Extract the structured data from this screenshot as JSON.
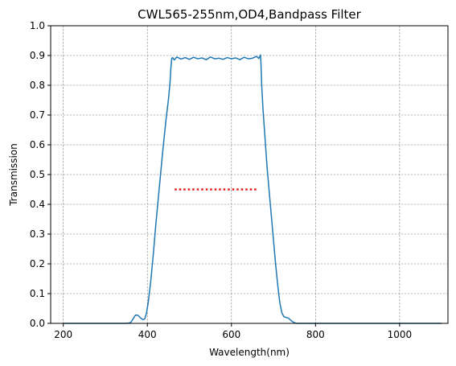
{
  "chart_data": {
    "type": "line",
    "title": "CWL565-255nm,OD4,Bandpass Filter",
    "xlabel": "Wavelength(nm)",
    "ylabel": "Transmission",
    "xlim": [
      170,
      1115
    ],
    "ylim": [
      0,
      1.0
    ],
    "xticks": [
      200,
      400,
      600,
      800,
      1000
    ],
    "yticks": [
      0.0,
      0.1,
      0.2,
      0.3,
      0.4,
      0.5,
      0.6,
      0.7,
      0.8,
      0.9,
      1.0
    ],
    "grid": true,
    "series": [
      {
        "color": "#1f77b4",
        "style": "solid",
        "x": [
          200,
          300,
          350,
          360,
          366,
          372,
          378,
          384,
          390,
          394,
          398,
          402,
          408,
          414,
          420,
          428,
          436,
          444,
          450,
          454,
          456,
          458,
          460,
          464,
          470,
          480,
          490,
          500,
          510,
          520,
          530,
          540,
          550,
          560,
          570,
          580,
          590,
          600,
          610,
          620,
          630,
          640,
          650,
          660,
          665,
          669,
          670,
          672,
          675,
          680,
          685,
          690,
          695,
          700,
          705,
          710,
          715,
          720,
          725,
          730,
          735,
          740,
          745,
          750,
          755,
          760,
          770,
          780,
          800,
          900,
          1000,
          1100
        ],
        "y": [
          0.0,
          0.0,
          0.0,
          0.002,
          0.015,
          0.028,
          0.027,
          0.018,
          0.012,
          0.016,
          0.035,
          0.07,
          0.14,
          0.23,
          0.33,
          0.45,
          0.57,
          0.68,
          0.75,
          0.81,
          0.86,
          0.89,
          0.893,
          0.885,
          0.895,
          0.888,
          0.893,
          0.887,
          0.894,
          0.889,
          0.892,
          0.886,
          0.895,
          0.889,
          0.891,
          0.887,
          0.893,
          0.889,
          0.892,
          0.886,
          0.894,
          0.889,
          0.891,
          0.897,
          0.89,
          0.902,
          0.88,
          0.8,
          0.72,
          0.62,
          0.52,
          0.44,
          0.36,
          0.28,
          0.2,
          0.13,
          0.07,
          0.035,
          0.022,
          0.02,
          0.018,
          0.012,
          0.006,
          0.002,
          0.0,
          0.0,
          0.0,
          0.0,
          0.0,
          0.0,
          0.0,
          0.0
        ]
      },
      {
        "color": "#e31a1c",
        "style": "dotted",
        "x": [
          465,
          665
        ],
        "y": [
          0.45,
          0.45
        ]
      }
    ]
  }
}
